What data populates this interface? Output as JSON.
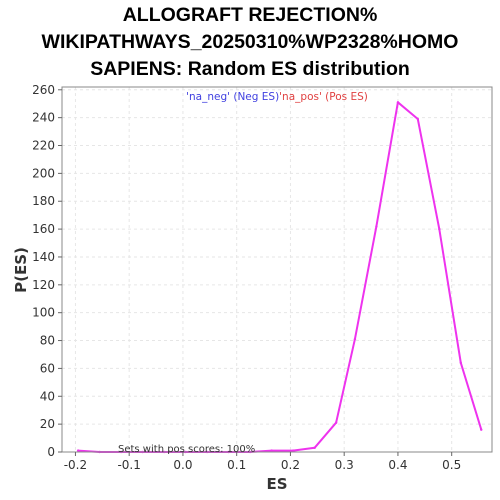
{
  "chart_data": {
    "type": "line",
    "title_lines": [
      "ALLOGRAFT REJECTION%",
      "WIKIPATHWAYS_20250310%WP2328%HOMO",
      "SAPIENS: Random ES distribution"
    ],
    "xlabel": "ES",
    "ylabel": "P(ES)",
    "xlim": [
      -0.225,
      0.575
    ],
    "ylim": [
      0,
      262
    ],
    "xticks": [
      -0.2,
      -0.1,
      0.0,
      0.1,
      0.2,
      0.3,
      0.4,
      0.5
    ],
    "xtick_labels": [
      "-0.2",
      "-0.1",
      "0.0",
      "0.1",
      "0.2",
      "0.3",
      "0.4",
      "0.5"
    ],
    "yticks": [
      0,
      20,
      40,
      60,
      80,
      100,
      120,
      140,
      160,
      180,
      200,
      220,
      240,
      260
    ],
    "ytick_labels": [
      "0",
      "20",
      "40",
      "60",
      "80",
      "100",
      "120",
      "140",
      "160",
      "180",
      "200",
      "220",
      "240",
      "260"
    ],
    "grid": true,
    "legend": [
      {
        "label": "'na_neg' (Neg ES)",
        "color": "#4040e0"
      },
      {
        "label": "'na_pos' (Pos ES)",
        "color": "#e04040"
      }
    ],
    "legend_placement": "top-center",
    "annotation": "Sets with pos scores: 100%",
    "series": [
      {
        "color": "#ee33ee",
        "x": [
          -0.195,
          -0.155,
          -0.115,
          -0.075,
          -0.035,
          0.005,
          0.045,
          0.085,
          0.125,
          0.165,
          0.205,
          0.245,
          0.285,
          0.32,
          0.36,
          0.4,
          0.437,
          0.477,
          0.517,
          0.555
        ],
        "y": [
          1,
          0,
          0,
          0,
          0,
          0,
          0,
          0,
          0,
          1,
          1,
          3,
          21,
          81,
          162,
          251,
          239,
          160,
          64,
          16
        ]
      }
    ]
  }
}
